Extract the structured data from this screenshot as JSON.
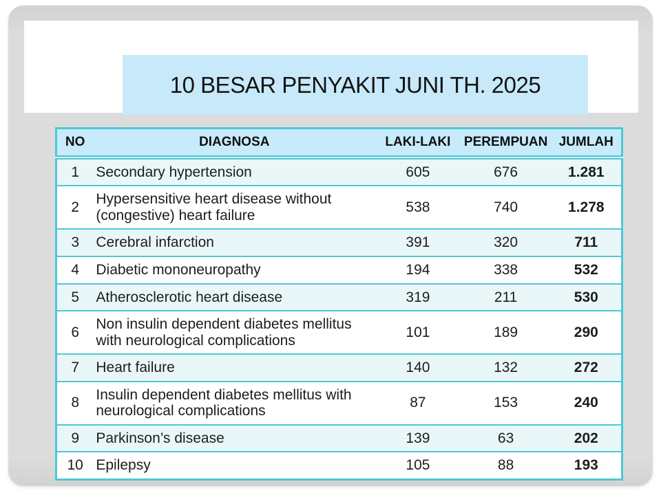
{
  "slide": {
    "title": "10 BESAR PENYAKIT JUNI TH. 2025"
  },
  "theme": {
    "slide-bg": "#dcdcdc",
    "slide-bg-dark": "#d2d2d2",
    "title-box-bg": "#c7e9fa",
    "header-bg": "#c7ebfa",
    "row-alt-bg": "#eaf7f9",
    "table-border": "#4dc8d6",
    "text-color": "#1c1c1c"
  },
  "table": {
    "headers": [
      "NO",
      "DIAGNOSA",
      "LAKI-LAKI",
      "PEREMPUAN",
      "JUMLAH"
    ],
    "rows": [
      {
        "no": "1",
        "diagnosa": "Secondary hypertension",
        "laki_laki": "605",
        "perempuan": "676",
        "jumlah": "1.281"
      },
      {
        "no": "2",
        "diagnosa": "Hypersensitive heart disease without (congestive) heart failure",
        "laki_laki": "538",
        "perempuan": "740",
        "jumlah": "1.278"
      },
      {
        "no": "3",
        "diagnosa": "Cerebral infarction",
        "laki_laki": "391",
        "perempuan": "320",
        "jumlah": "711"
      },
      {
        "no": "4",
        "diagnosa": "Diabetic mononeuropathy",
        "laki_laki": "194",
        "perempuan": "338",
        "jumlah": "532"
      },
      {
        "no": "5",
        "diagnosa": "Atherosclerotic heart disease",
        "laki_laki": "319",
        "perempuan": "211",
        "jumlah": "530"
      },
      {
        "no": "6",
        "diagnosa": "Non insulin dependent diabetes mellitus with neurological complications",
        "laki_laki": "101",
        "perempuan": "189",
        "jumlah": "290"
      },
      {
        "no": "7",
        "diagnosa": "Heart failure",
        "laki_laki": "140",
        "perempuan": "132",
        "jumlah": "272"
      },
      {
        "no": "8",
        "diagnosa": "Insulin dependent diabetes mellitus with neurological complications",
        "laki_laki": "87",
        "perempuan": "153",
        "jumlah": "240"
      },
      {
        "no": "9",
        "diagnosa": "Parkinson’s disease",
        "laki_laki": "139",
        "perempuan": "63",
        "jumlah": "202"
      },
      {
        "no": "10",
        "diagnosa": "Epilepsy",
        "laki_laki": "105",
        "perempuan": "88",
        "jumlah": "193"
      }
    ]
  }
}
